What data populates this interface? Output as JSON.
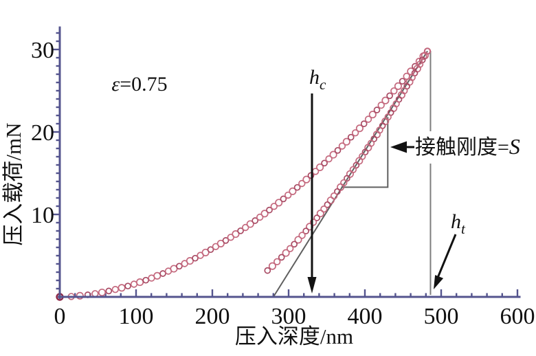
{
  "chart_data": {
    "type": "scatter",
    "title": "",
    "xlabel": "压入深度/nm",
    "ylabel": "压入载荷/mN",
    "xlim": [
      0,
      600
    ],
    "ylim": [
      0,
      32.5
    ],
    "x_ticks": [
      0,
      100,
      200,
      300,
      400,
      500,
      600
    ],
    "y_ticks": [
      10,
      20,
      30
    ],
    "x_minor_step_nm": 20,
    "y_minor_step_mN": 1,
    "grid": false,
    "legend": "none",
    "colors": {
      "axis": "#54548e",
      "marker": "#c4697e",
      "marker_dark": "#a84a63",
      "first_point": "#8e2949",
      "gray_line": "#5f5f5f",
      "ht_line": "#7d7d7d",
      "arrow": "#121212"
    },
    "series": [
      {
        "name": "loading",
        "marker": "open-circle",
        "model": {
          "kind": "power_loading",
          "h_max_nm": 482,
          "p_max_mN": 29.8,
          "exponent": 1.85,
          "n_points": 72
        },
        "key_points_h_P": [
          [
            0,
            0
          ],
          [
            100,
            1.6
          ],
          [
            200,
            5.6
          ],
          [
            300,
            11.9
          ],
          [
            400,
            21.2
          ],
          [
            482,
            29.8
          ]
        ]
      },
      {
        "name": "unloading",
        "marker": "open-circle",
        "model": {
          "kind": "power_unloading",
          "h_max_nm": 482,
          "p_max_mN": 29.8,
          "h_final_nm": 215,
          "exponent": 1.45,
          "p_end_mN": 3.2,
          "n_points": 50
        },
        "key_points_h_P": [
          [
            482,
            29.8
          ],
          [
            430,
            21.5
          ],
          [
            367,
            13.1
          ],
          [
            330,
            8.8
          ],
          [
            270,
            3.2
          ]
        ]
      }
    ],
    "annotations": {
      "epsilon": {
        "sym": "ε",
        "rest": "=0.75"
      },
      "hc": {
        "base": "h",
        "sub": "c",
        "depth_nm": 330
      },
      "ht": {
        "base": "h",
        "sub": "t",
        "depth_nm": 486
      },
      "stiffness": {
        "text": "接触刚度=",
        "s": "S"
      },
      "tangent_line_h_P": [
        [
          280,
          0
        ],
        [
          482,
          29.8
        ]
      ],
      "slope_triangle": {
        "h_range_nm": [
          369,
          430
        ],
        "p_range_mN": [
          13.3,
          21.8
        ]
      }
    }
  }
}
